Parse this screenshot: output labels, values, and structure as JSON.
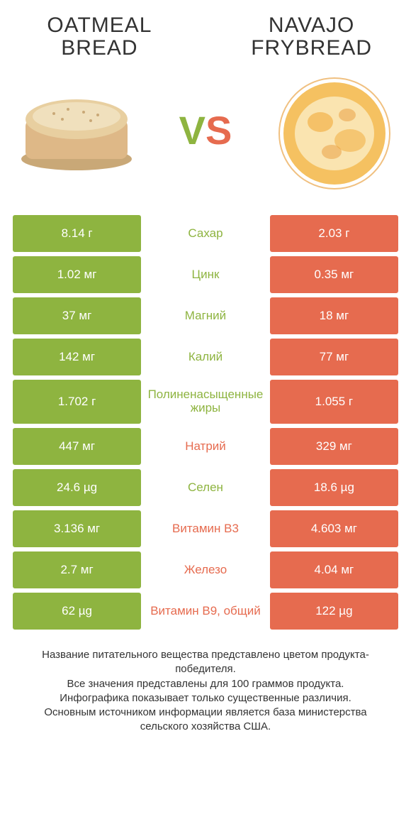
{
  "colors": {
    "left": "#8eb440",
    "right": "#e66b4f",
    "bg": "#ffffff",
    "text": "#333333"
  },
  "left_title": "Oatmeal bread",
  "right_title": "Navajo frybread",
  "vs": {
    "v": "V",
    "s": "S"
  },
  "rows": [
    {
      "left": "8.14 г",
      "mid": "Сахар",
      "right": "2.03 г",
      "winner": "left",
      "tall": false
    },
    {
      "left": "1.02 мг",
      "mid": "Цинк",
      "right": "0.35 мг",
      "winner": "left",
      "tall": false
    },
    {
      "left": "37 мг",
      "mid": "Магний",
      "right": "18 мг",
      "winner": "left",
      "tall": false
    },
    {
      "left": "142 мг",
      "mid": "Калий",
      "right": "77 мг",
      "winner": "left",
      "tall": false
    },
    {
      "left": "1.702 г",
      "mid": "Полиненасыщенные жиры",
      "right": "1.055 г",
      "winner": "left",
      "tall": true
    },
    {
      "left": "447 мг",
      "mid": "Натрий",
      "right": "329 мг",
      "winner": "right",
      "tall": false
    },
    {
      "left": "24.6 µg",
      "mid": "Селен",
      "right": "18.6 µg",
      "winner": "left",
      "tall": false
    },
    {
      "left": "3.136 мг",
      "mid": "Витамин B3",
      "right": "4.603 мг",
      "winner": "right",
      "tall": false
    },
    {
      "left": "2.7 мг",
      "mid": "Железо",
      "right": "4.04 мг",
      "winner": "right",
      "tall": false
    },
    {
      "left": "62 µg",
      "mid": "Витамин B9, общий",
      "right": "122 µg",
      "winner": "right",
      "tall": false
    }
  ],
  "footer": "Название питательного вещества представлено цветом продукта-победителя.\nВсе значения представлены для 100 граммов продукта.\nИнфографика показывает только существенные различия.\nОсновным источником информации является база министерства сельского хозяйства США."
}
